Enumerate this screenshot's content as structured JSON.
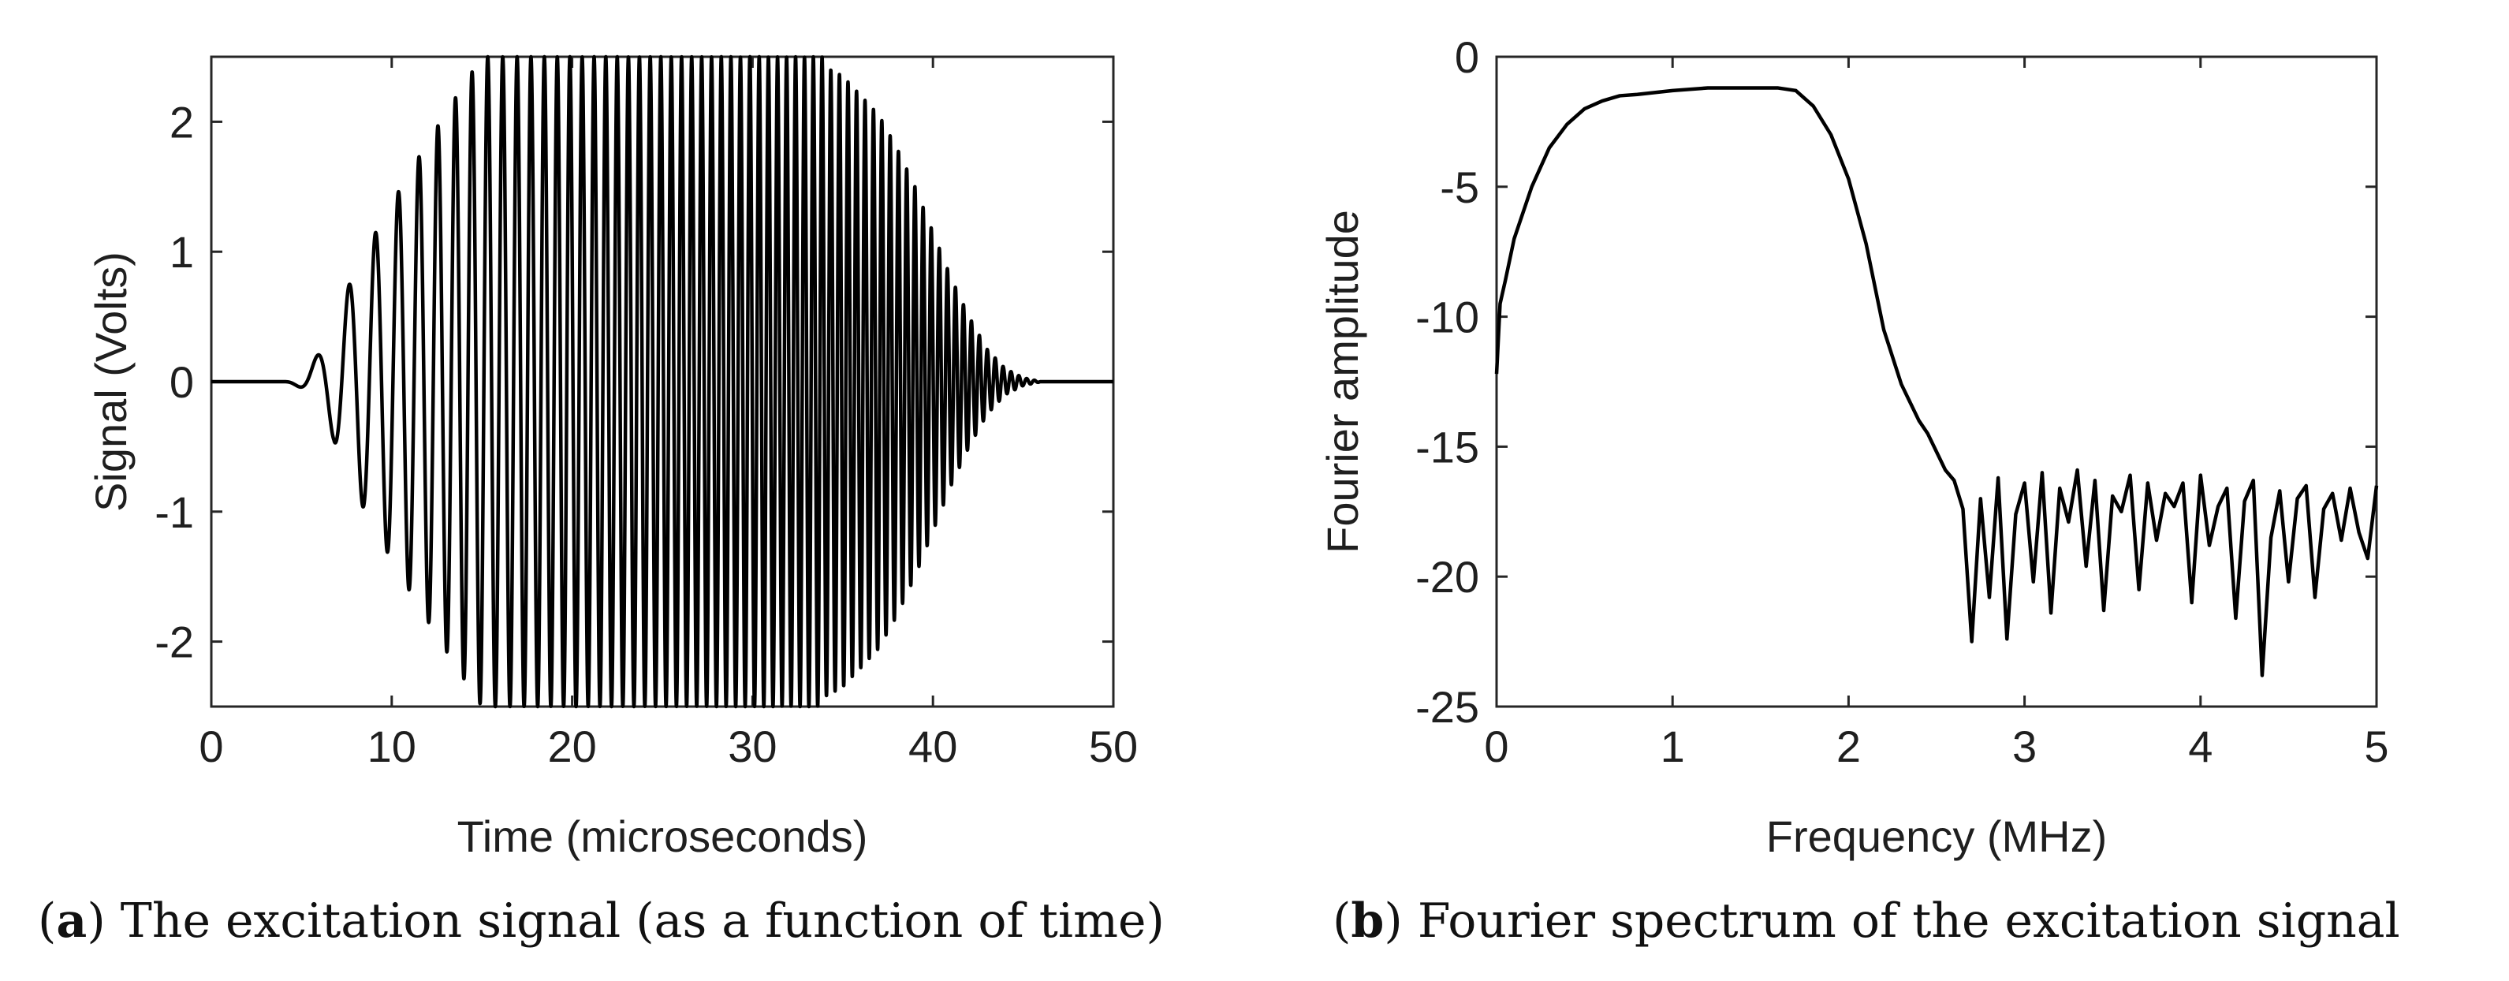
{
  "chart_data": [
    {
      "type": "line",
      "caption_letter": "a",
      "caption_text": ") The excitation signal (as a function of time)",
      "xlabel": "Time (microseconds)",
      "ylabel": "Signal (Volts)",
      "xlim": [
        0,
        50
      ],
      "ylim": [
        -2.5,
        2.5
      ],
      "xticks": [
        "0",
        "10",
        "20",
        "30",
        "40",
        "50"
      ],
      "yticks": [
        "2",
        "1",
        "0",
        "-1",
        "-2"
      ],
      "grid": false,
      "legend": "none",
      "line_color": "#000000",
      "series": [
        {
          "x": [
            0,
            4,
            6.8,
            8.6,
            10.1,
            11.2,
            12.3,
            13.3,
            14.3,
            15,
            16,
            20,
            25,
            30,
            33,
            35,
            36,
            37,
            38,
            39,
            40,
            41,
            42,
            43,
            44,
            45,
            46,
            47,
            50
          ],
          "y": [
            0,
            0,
            -0.45,
            1.02,
            -1.55,
            1.9,
            -2.2,
            2.35,
            -2.47,
            2.5,
            2.5,
            2.5,
            2.5,
            2.5,
            2.5,
            2.35,
            2.2,
            2.05,
            1.8,
            1.5,
            1.15,
            0.8,
            0.5,
            0.25,
            0.1,
            0.03,
            0,
            0,
            0
          ]
        }
      ]
    },
    {
      "type": "line",
      "caption_letter": "b",
      "caption_text": ") Fourier spectrum of the excitation signal",
      "xlabel": "Frequency (MHz)",
      "ylabel": "Fourier amplitude",
      "xlim": [
        0,
        5
      ],
      "ylim": [
        -25,
        0
      ],
      "xticks": [
        "0",
        "1",
        "2",
        "3",
        "4",
        "5"
      ],
      "yticks": [
        "0",
        "-5",
        "-10",
        "-15",
        "-20",
        "-25"
      ],
      "grid": false,
      "legend": "none",
      "line_color": "#000000",
      "series": [
        {
          "x": [
            0,
            0.02,
            0.05,
            0.1,
            0.2,
            0.3,
            0.4,
            0.5,
            0.6,
            0.7,
            0.8,
            1.0,
            1.2,
            1.4,
            1.6,
            1.7,
            1.8,
            1.9,
            2.0,
            2.1,
            2.2,
            2.3,
            2.4,
            2.45,
            2.5,
            2.55,
            2.6,
            2.65,
            2.7,
            2.75,
            2.8,
            2.85,
            2.9,
            2.95,
            3.0,
            3.05,
            3.1,
            3.15,
            3.2,
            3.25,
            3.3,
            3.35,
            3.4,
            3.45,
            3.5,
            3.55,
            3.6,
            3.65,
            3.7,
            3.75,
            3.8,
            3.85,
            3.9,
            3.95,
            4.0,
            4.05,
            4.1,
            4.15,
            4.2,
            4.25,
            4.3,
            4.35,
            4.4,
            4.45,
            4.5,
            4.55,
            4.6,
            4.65,
            4.7,
            4.75,
            4.8,
            4.85,
            4.9,
            4.95,
            5.0
          ],
          "y": [
            -12.2,
            -9.5,
            -8.6,
            -7.0,
            -5.0,
            -3.5,
            -2.6,
            -2.0,
            -1.7,
            -1.5,
            -1.45,
            -1.3,
            -1.2,
            -1.2,
            -1.2,
            -1.3,
            -1.9,
            -3.0,
            -4.7,
            -7.2,
            -10.5,
            -12.6,
            -14.0,
            -14.5,
            -15.2,
            -15.9,
            -16.3,
            -17.4,
            -22.5,
            -17.0,
            -20.8,
            -16.2,
            -22.4,
            -17.6,
            -16.4,
            -20.2,
            -16.0,
            -21.4,
            -16.6,
            -17.9,
            -15.9,
            -19.6,
            -16.3,
            -21.3,
            -16.9,
            -17.5,
            -16.1,
            -20.5,
            -16.4,
            -18.6,
            -16.8,
            -17.3,
            -16.4,
            -21.0,
            -16.1,
            -18.8,
            -17.3,
            -16.6,
            -21.6,
            -17.1,
            -16.3,
            -23.8,
            -18.5,
            -16.7,
            -20.2,
            -17.0,
            -16.5,
            -20.8,
            -17.4,
            -16.8,
            -18.6,
            -16.6,
            -18.3,
            -19.3,
            -16.5
          ]
        }
      ]
    }
  ]
}
